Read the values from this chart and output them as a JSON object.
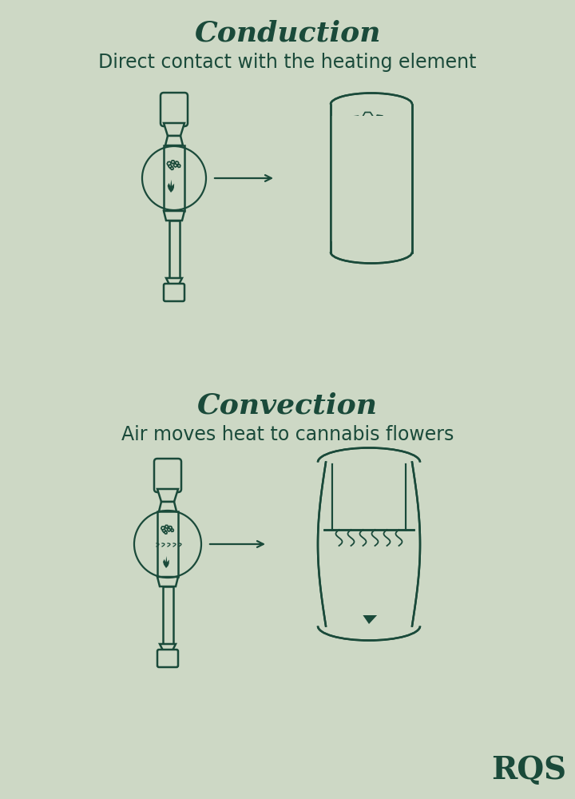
{
  "bg_color": "#cdd8c5",
  "dark_green": "#1a4a3a",
  "title1": "Conduction",
  "subtitle1": "Direct contact with the heating element",
  "title2": "Convection",
  "subtitle2": "Air moves heat to cannabis flowers",
  "logo": "RQS",
  "title_fontsize": 26,
  "subtitle_fontsize": 17,
  "logo_fontsize": 28
}
